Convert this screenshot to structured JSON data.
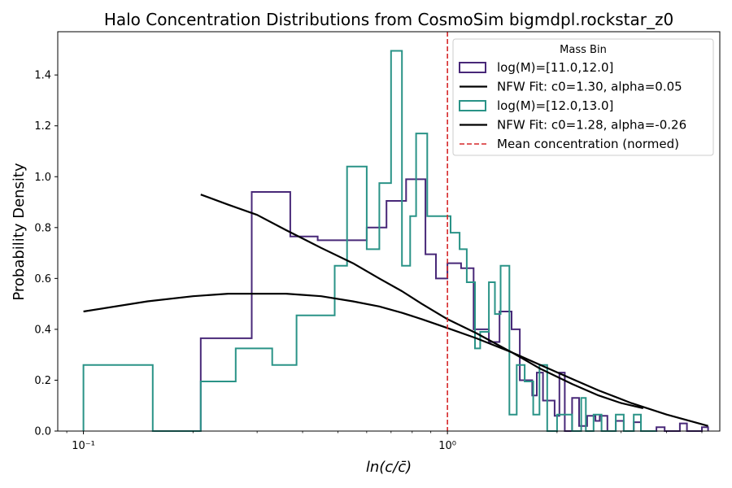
{
  "chart_data": {
    "type": "step-histogram",
    "title": "Halo Concentration Distributions from CosmoSim bigmdpl.rockstar_z0",
    "xlabel": "ln(c/c̄)",
    "ylabel": "Probability Density",
    "xscale": "log",
    "xlim": [
      0.085,
      5.6
    ],
    "ylim": [
      0,
      1.57
    ],
    "x_major_ticks": [
      0.1,
      1
    ],
    "x_major_tick_labels": [
      "10⁻¹",
      "10⁰"
    ],
    "y_ticks": [
      0.0,
      0.2,
      0.4,
      0.6,
      0.8,
      1.0,
      1.2,
      1.4
    ],
    "y_tick_labels": [
      "0.0",
      "0.2",
      "0.4",
      "0.6",
      "0.8",
      "1.0",
      "1.2",
      "1.4"
    ],
    "grid": false,
    "legend": {
      "title": "Mass Bin",
      "placement": "top-right"
    },
    "histograms": [
      {
        "name": "log(M)=[11.0,12.0]",
        "color": "#482878",
        "steps": [
          [
            0.21,
            0.0
          ],
          [
            0.21,
            0.365
          ],
          [
            0.29,
            0.365
          ],
          [
            0.29,
            0.94
          ],
          [
            0.37,
            0.94
          ],
          [
            0.37,
            0.765
          ],
          [
            0.44,
            0.765
          ],
          [
            0.44,
            0.75
          ],
          [
            0.6,
            0.75
          ],
          [
            0.6,
            0.8
          ],
          [
            0.68,
            0.8
          ],
          [
            0.68,
            0.905
          ],
          [
            0.77,
            0.905
          ],
          [
            0.77,
            0.99
          ],
          [
            0.87,
            0.99
          ],
          [
            0.87,
            0.695
          ],
          [
            0.93,
            0.695
          ],
          [
            0.93,
            0.6
          ],
          [
            1.0,
            0.6
          ],
          [
            1.0,
            0.66
          ],
          [
            1.09,
            0.66
          ],
          [
            1.09,
            0.64
          ],
          [
            1.18,
            0.64
          ],
          [
            1.18,
            0.4
          ],
          [
            1.3,
            0.4
          ],
          [
            1.3,
            0.35
          ],
          [
            1.39,
            0.35
          ],
          [
            1.39,
            0.47
          ],
          [
            1.5,
            0.47
          ],
          [
            1.5,
            0.4
          ],
          [
            1.58,
            0.4
          ],
          [
            1.58,
            0.2
          ],
          [
            1.71,
            0.2
          ],
          [
            1.71,
            0.14
          ],
          [
            1.76,
            0.14
          ],
          [
            1.76,
            0.23
          ],
          [
            1.83,
            0.23
          ],
          [
            1.83,
            0.12
          ],
          [
            1.89,
            0.12
          ],
          [
            1.89,
            0.12
          ],
          [
            1.97,
            0.12
          ],
          [
            1.97,
            0.06
          ],
          [
            2.03,
            0.06
          ],
          [
            2.03,
            0.23
          ],
          [
            2.1,
            0.23
          ],
          [
            2.1,
            0.0
          ],
          [
            2.2,
            0.0
          ],
          [
            2.2,
            0.13
          ],
          [
            2.3,
            0.13
          ],
          [
            2.3,
            0.02
          ],
          [
            2.42,
            0.02
          ],
          [
            2.42,
            0.06
          ],
          [
            2.55,
            0.06
          ],
          [
            2.55,
            0.04
          ],
          [
            2.62,
            0.04
          ],
          [
            2.62,
            0.06
          ],
          [
            2.75,
            0.06
          ],
          [
            2.75,
            0.0
          ],
          [
            2.9,
            0.0
          ],
          [
            2.9,
            0.04
          ],
          [
            3.05,
            0.04
          ],
          [
            3.05,
            0.0
          ],
          [
            3.25,
            0.0
          ],
          [
            3.25,
            0.035
          ],
          [
            3.4,
            0.035
          ],
          [
            3.4,
            0.0
          ],
          [
            3.75,
            0.0
          ],
          [
            3.75,
            0.015
          ],
          [
            3.95,
            0.015
          ],
          [
            3.95,
            0.0
          ],
          [
            4.35,
            0.0
          ],
          [
            4.35,
            0.03
          ],
          [
            4.55,
            0.03
          ],
          [
            4.55,
            0.0
          ],
          [
            5.0,
            0.0
          ],
          [
            5.0,
            0.015
          ],
          [
            5.2,
            0.015
          ],
          [
            5.2,
            0.0
          ]
        ]
      },
      {
        "name": "log(M)=[12.0,13.0]",
        "color": "#2a9387",
        "steps": [
          [
            0.1,
            0.0
          ],
          [
            0.1,
            0.26
          ],
          [
            0.155,
            0.26
          ],
          [
            0.155,
            0.0
          ],
          [
            0.21,
            0.0
          ],
          [
            0.21,
            0.195
          ],
          [
            0.262,
            0.195
          ],
          [
            0.262,
            0.325
          ],
          [
            0.33,
            0.325
          ],
          [
            0.33,
            0.26
          ],
          [
            0.385,
            0.26
          ],
          [
            0.385,
            0.455
          ],
          [
            0.49,
            0.455
          ],
          [
            0.49,
            0.65
          ],
          [
            0.53,
            0.65
          ],
          [
            0.53,
            1.04
          ],
          [
            0.6,
            1.04
          ],
          [
            0.6,
            0.715
          ],
          [
            0.65,
            0.715
          ],
          [
            0.65,
            0.975
          ],
          [
            0.7,
            0.975
          ],
          [
            0.7,
            1.495
          ],
          [
            0.75,
            1.495
          ],
          [
            0.75,
            0.65
          ],
          [
            0.79,
            0.65
          ],
          [
            0.79,
            0.845
          ],
          [
            0.82,
            0.845
          ],
          [
            0.82,
            1.17
          ],
          [
            0.88,
            1.17
          ],
          [
            0.88,
            0.845
          ],
          [
            1.02,
            0.845
          ],
          [
            1.02,
            0.78
          ],
          [
            1.08,
            0.78
          ],
          [
            1.08,
            0.715
          ],
          [
            1.13,
            0.715
          ],
          [
            1.13,
            0.585
          ],
          [
            1.19,
            0.585
          ],
          [
            1.19,
            0.325
          ],
          [
            1.23,
            0.325
          ],
          [
            1.23,
            0.39
          ],
          [
            1.3,
            0.39
          ],
          [
            1.3,
            0.585
          ],
          [
            1.35,
            0.585
          ],
          [
            1.35,
            0.46
          ],
          [
            1.4,
            0.46
          ],
          [
            1.4,
            0.65
          ],
          [
            1.48,
            0.65
          ],
          [
            1.48,
            0.065
          ],
          [
            1.55,
            0.065
          ],
          [
            1.55,
            0.26
          ],
          [
            1.63,
            0.26
          ],
          [
            1.63,
            0.195
          ],
          [
            1.72,
            0.195
          ],
          [
            1.72,
            0.065
          ],
          [
            1.79,
            0.065
          ],
          [
            1.79,
            0.26
          ],
          [
            1.88,
            0.26
          ],
          [
            1.88,
            0.0
          ],
          [
            2.0,
            0.0
          ],
          [
            2.0,
            0.065
          ],
          [
            2.2,
            0.065
          ],
          [
            2.2,
            0.0
          ],
          [
            2.33,
            0.0
          ],
          [
            2.33,
            0.13
          ],
          [
            2.4,
            0.13
          ],
          [
            2.4,
            0.0
          ],
          [
            2.52,
            0.0
          ],
          [
            2.52,
            0.065
          ],
          [
            2.65,
            0.065
          ],
          [
            2.65,
            0.0
          ],
          [
            2.9,
            0.0
          ],
          [
            2.9,
            0.065
          ],
          [
            3.05,
            0.065
          ],
          [
            3.05,
            0.0
          ],
          [
            3.25,
            0.0
          ],
          [
            3.25,
            0.065
          ],
          [
            3.4,
            0.065
          ],
          [
            3.4,
            0.0
          ],
          [
            3.75,
            0.0
          ]
        ]
      }
    ],
    "fits": [
      {
        "name": "NFW Fit: c0=1.30, alpha=0.05",
        "color": "#000000",
        "points": [
          [
            0.1,
            0.47
          ],
          [
            0.15,
            0.51
          ],
          [
            0.2,
            0.53
          ],
          [
            0.25,
            0.54
          ],
          [
            0.3,
            0.54
          ],
          [
            0.36,
            0.54
          ],
          [
            0.45,
            0.53
          ],
          [
            0.55,
            0.51
          ],
          [
            0.65,
            0.49
          ],
          [
            0.75,
            0.465
          ],
          [
            0.85,
            0.44
          ],
          [
            1.0,
            0.405
          ],
          [
            1.2,
            0.365
          ],
          [
            1.5,
            0.31
          ],
          [
            1.8,
            0.26
          ],
          [
            2.2,
            0.205
          ],
          [
            2.6,
            0.16
          ],
          [
            3.2,
            0.11
          ],
          [
            4.0,
            0.065
          ],
          [
            5.2,
            0.02
          ]
        ]
      },
      {
        "name": "NFW Fit: c0=1.28, alpha=-0.26",
        "color": "#000000",
        "points": [
          [
            0.21,
            0.93
          ],
          [
            0.25,
            0.89
          ],
          [
            0.3,
            0.85
          ],
          [
            0.36,
            0.79
          ],
          [
            0.45,
            0.72
          ],
          [
            0.55,
            0.66
          ],
          [
            0.65,
            0.6
          ],
          [
            0.75,
            0.55
          ],
          [
            0.85,
            0.5
          ],
          [
            1.0,
            0.44
          ],
          [
            1.2,
            0.385
          ],
          [
            1.5,
            0.31
          ],
          [
            1.8,
            0.245
          ],
          [
            2.2,
            0.185
          ],
          [
            2.6,
            0.14
          ],
          [
            3.0,
            0.11
          ],
          [
            3.45,
            0.09
          ]
        ]
      }
    ],
    "reference_lines": [
      {
        "name": "Mean concentration (normed)",
        "orientation": "vertical",
        "x": 1.0,
        "color": "#d62728",
        "style": "dashed"
      }
    ]
  },
  "legend_entries": [
    {
      "label": "log(M)=[11.0,12.0]",
      "kind": "box",
      "color": "#482878"
    },
    {
      "label": "NFW Fit: c0=1.30, alpha=0.05",
      "kind": "line",
      "color": "#000000"
    },
    {
      "label": "log(M)=[12.0,13.0]",
      "kind": "box",
      "color": "#2a9387"
    },
    {
      "label": "NFW Fit: c0=1.28, alpha=-0.26",
      "kind": "line",
      "color": "#000000"
    },
    {
      "label": "Mean concentration (normed)",
      "kind": "dash",
      "color": "#d62728"
    }
  ]
}
